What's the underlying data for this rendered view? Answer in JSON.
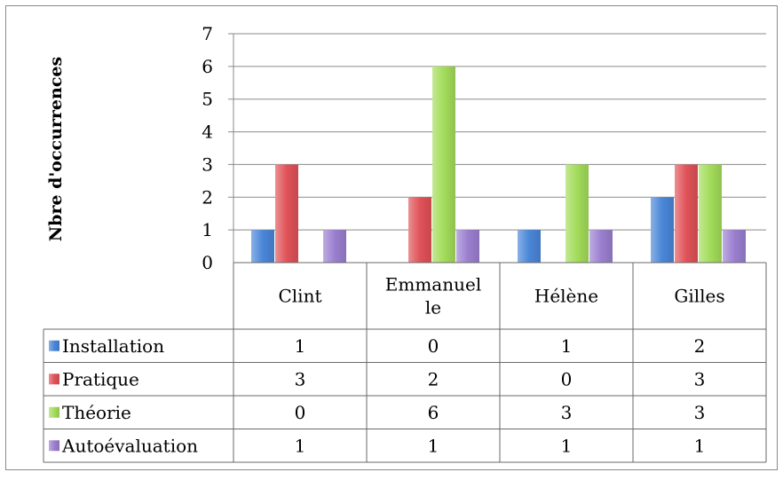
{
  "chart_data": {
    "type": "bar",
    "ylabel": "Nbre d'occurrences",
    "xlabel": "",
    "title": "",
    "ylim": [
      0,
      7
    ],
    "yticks": [
      0,
      1,
      2,
      3,
      4,
      5,
      6,
      7
    ],
    "grid": true,
    "legend": "data-table",
    "categories": [
      "Clint",
      "Emmanuelle",
      "Hélène",
      "Gilles"
    ],
    "category_display": [
      [
        "Clint"
      ],
      [
        "Emmanuel",
        "le"
      ],
      [
        "Hélène"
      ],
      [
        "Gilles"
      ]
    ],
    "series": [
      {
        "name": "Installation",
        "values": [
          1,
          0,
          1,
          2
        ],
        "color": "#4a86d8"
      },
      {
        "name": "Pratique",
        "values": [
          3,
          2,
          0,
          3
        ],
        "color": "#e05258"
      },
      {
        "name": "Théorie",
        "values": [
          0,
          6,
          3,
          3
        ],
        "color": "#a3dc5a"
      },
      {
        "name": "Autoévaluation",
        "values": [
          1,
          1,
          1,
          1
        ],
        "color": "#9b7fd0"
      }
    ]
  }
}
